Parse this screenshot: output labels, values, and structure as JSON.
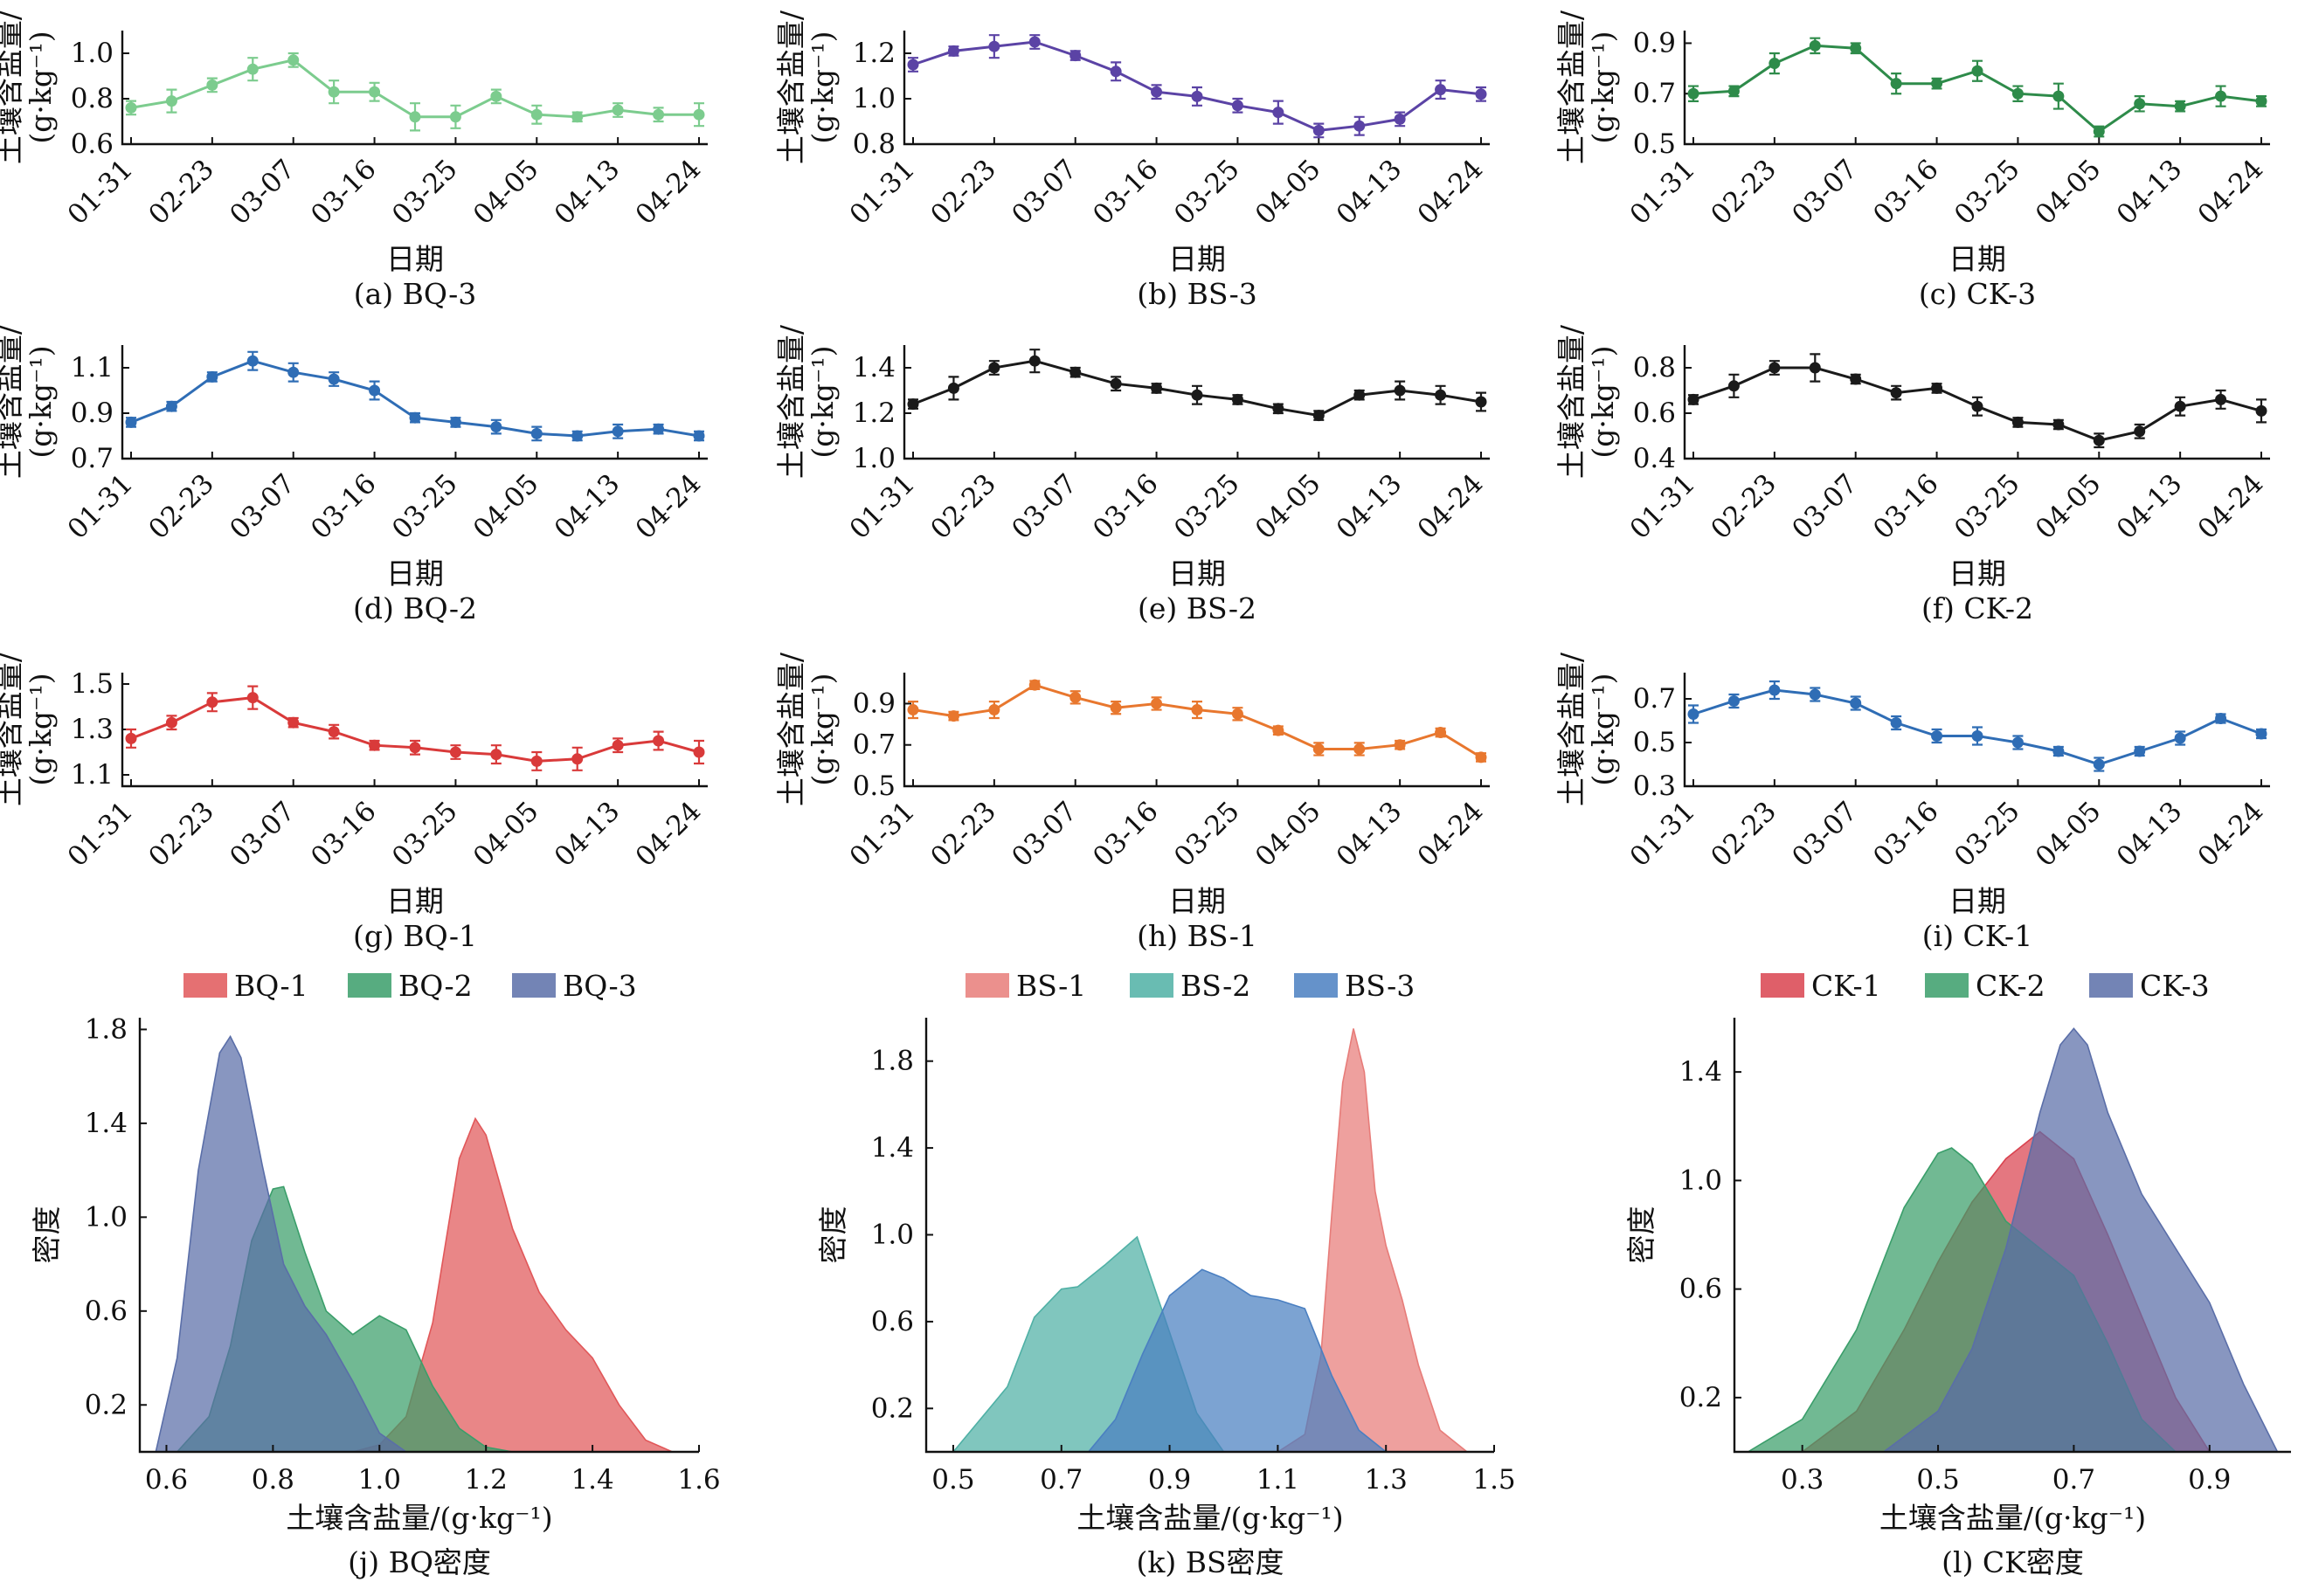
{
  "xlabel": "日期",
  "ylabel_line1": "土壤含盐量/",
  "ylabel_line2": "(g·kg⁻¹)",
  "density_xlabel": "土壤含盐量/(g·kg⁻¹)",
  "density_ylabel": "密度",
  "x_tick_labels": [
    "01-31",
    "02-23",
    "03-07",
    "03-16",
    "03-25",
    "04-05",
    "04-13",
    "04-24"
  ],
  "chart_data": [
    {
      "id": "a",
      "type": "line",
      "caption": "(a) BQ-3",
      "color": "#7ccc8e",
      "ylim": [
        0.6,
        1.1
      ],
      "yticks": [
        0.6,
        0.8,
        1.0
      ],
      "x": [
        "01-31",
        "",
        "02-23",
        "",
        "03-07",
        "",
        "03-16",
        "",
        "03-25",
        "",
        "04-05",
        "",
        "04-13",
        "",
        "04-24"
      ],
      "values": [
        0.76,
        0.79,
        0.86,
        0.93,
        0.97,
        0.83,
        0.83,
        0.72,
        0.72,
        0.81,
        0.73,
        0.72,
        0.75,
        0.73,
        0.73
      ],
      "errors": [
        0.03,
        0.05,
        0.03,
        0.05,
        0.03,
        0.05,
        0.04,
        0.06,
        0.05,
        0.03,
        0.04,
        0.02,
        0.03,
        0.03,
        0.05
      ]
    },
    {
      "id": "b",
      "type": "line",
      "caption": "(b) BS-3",
      "color": "#5b43a5",
      "ylim": [
        0.8,
        1.3
      ],
      "yticks": [
        0.8,
        1.0,
        1.2
      ],
      "x": [
        "01-31",
        "",
        "02-23",
        "",
        "03-07",
        "",
        "03-16",
        "",
        "03-25",
        "",
        "04-05",
        "",
        "04-13",
        "",
        "04-24"
      ],
      "values": [
        1.15,
        1.21,
        1.23,
        1.25,
        1.19,
        1.12,
        1.03,
        1.01,
        0.97,
        0.94,
        0.86,
        0.88,
        0.91,
        1.04,
        1.02
      ],
      "errors": [
        0.03,
        0.02,
        0.05,
        0.03,
        0.02,
        0.04,
        0.03,
        0.04,
        0.03,
        0.05,
        0.03,
        0.04,
        0.03,
        0.04,
        0.03
      ]
    },
    {
      "id": "c",
      "type": "line",
      "caption": "(c) CK-3",
      "color": "#2e8b4a",
      "ylim": [
        0.5,
        0.95
      ],
      "yticks": [
        0.5,
        0.7,
        0.9
      ],
      "x": [
        "01-31",
        "",
        "02-23",
        "",
        "03-07",
        "",
        "03-16",
        "",
        "03-25",
        "",
        "04-05",
        "",
        "04-13",
        "",
        "04-24"
      ],
      "values": [
        0.7,
        0.71,
        0.82,
        0.89,
        0.88,
        0.74,
        0.74,
        0.79,
        0.7,
        0.69,
        0.55,
        0.66,
        0.65,
        0.69,
        0.67
      ],
      "errors": [
        0.03,
        0.02,
        0.04,
        0.03,
        0.02,
        0.04,
        0.02,
        0.04,
        0.03,
        0.05,
        0.02,
        0.03,
        0.02,
        0.04,
        0.02
      ]
    },
    {
      "id": "d",
      "type": "line",
      "caption": "(d) BQ-2",
      "color": "#2f6db5",
      "ylim": [
        0.7,
        1.2
      ],
      "yticks": [
        0.7,
        0.9,
        1.1
      ],
      "x": [
        "01-31",
        "",
        "02-23",
        "",
        "03-07",
        "",
        "03-16",
        "",
        "03-25",
        "",
        "04-05",
        "",
        "04-13",
        "",
        "04-24"
      ],
      "values": [
        0.86,
        0.93,
        1.06,
        1.13,
        1.08,
        1.05,
        1.0,
        0.88,
        0.86,
        0.84,
        0.81,
        0.8,
        0.82,
        0.83,
        0.8
      ],
      "errors": [
        0.02,
        0.02,
        0.02,
        0.04,
        0.04,
        0.03,
        0.04,
        0.02,
        0.02,
        0.03,
        0.03,
        0.02,
        0.03,
        0.02,
        0.02
      ]
    },
    {
      "id": "e",
      "type": "line",
      "caption": "(e) BS-2",
      "color": "#1a1a1a",
      "ylim": [
        1.0,
        1.5
      ],
      "yticks": [
        1.0,
        1.2,
        1.4
      ],
      "x": [
        "01-31",
        "",
        "02-23",
        "",
        "03-07",
        "",
        "03-16",
        "",
        "03-25",
        "",
        "04-05",
        "",
        "04-13",
        "",
        "04-24"
      ],
      "values": [
        1.24,
        1.31,
        1.4,
        1.43,
        1.38,
        1.33,
        1.31,
        1.28,
        1.26,
        1.22,
        1.19,
        1.28,
        1.3,
        1.28,
        1.25
      ],
      "errors": [
        0.02,
        0.05,
        0.03,
        0.05,
        0.02,
        0.03,
        0.02,
        0.04,
        0.02,
        0.02,
        0.02,
        0.02,
        0.04,
        0.04,
        0.04
      ]
    },
    {
      "id": "f",
      "type": "line",
      "caption": "(f) CK-2",
      "color": "#1a1a1a",
      "ylim": [
        0.4,
        0.9
      ],
      "yticks": [
        0.4,
        0.6,
        0.8
      ],
      "x": [
        "01-31",
        "",
        "02-23",
        "",
        "03-07",
        "",
        "03-16",
        "",
        "03-25",
        "",
        "04-05",
        "",
        "04-13",
        "",
        "04-24"
      ],
      "values": [
        0.66,
        0.72,
        0.8,
        0.8,
        0.75,
        0.69,
        0.71,
        0.63,
        0.56,
        0.55,
        0.48,
        0.52,
        0.63,
        0.66,
        0.61
      ],
      "errors": [
        0.02,
        0.05,
        0.03,
        0.06,
        0.02,
        0.03,
        0.02,
        0.04,
        0.02,
        0.02,
        0.03,
        0.03,
        0.04,
        0.04,
        0.05
      ]
    },
    {
      "id": "g",
      "type": "line",
      "caption": "(g) BQ-1",
      "color": "#d93a3a",
      "ylim": [
        1.05,
        1.55
      ],
      "yticks": [
        1.1,
        1.3,
        1.5
      ],
      "x": [
        "01-31",
        "",
        "02-23",
        "",
        "03-07",
        "",
        "03-16",
        "",
        "03-25",
        "",
        "04-05",
        "",
        "04-13",
        "",
        "04-24"
      ],
      "values": [
        1.26,
        1.33,
        1.42,
        1.44,
        1.33,
        1.29,
        1.23,
        1.22,
        1.2,
        1.19,
        1.16,
        1.17,
        1.23,
        1.25,
        1.2
      ],
      "errors": [
        0.04,
        0.03,
        0.04,
        0.05,
        0.02,
        0.03,
        0.02,
        0.03,
        0.03,
        0.04,
        0.04,
        0.05,
        0.03,
        0.04,
        0.05
      ]
    },
    {
      "id": "h",
      "type": "line",
      "caption": "(h) BS-1",
      "color": "#e8772e",
      "ylim": [
        0.5,
        1.05
      ],
      "yticks": [
        0.5,
        0.7,
        0.9
      ],
      "x": [
        "01-31",
        "",
        "02-23",
        "",
        "03-07",
        "",
        "03-16",
        "",
        "03-25",
        "",
        "04-05",
        "",
        "04-13",
        "",
        "04-24"
      ],
      "values": [
        0.87,
        0.84,
        0.87,
        0.99,
        0.93,
        0.88,
        0.9,
        0.87,
        0.85,
        0.77,
        0.68,
        0.68,
        0.7,
        0.76,
        0.64
      ],
      "errors": [
        0.04,
        0.02,
        0.04,
        0.02,
        0.03,
        0.03,
        0.03,
        0.04,
        0.03,
        0.02,
        0.03,
        0.03,
        0.02,
        0.02,
        0.02
      ]
    },
    {
      "id": "i",
      "type": "line",
      "caption": "(i) CK-1",
      "color": "#2f6db5",
      "ylim": [
        0.3,
        0.82
      ],
      "yticks": [
        0.3,
        0.5,
        0.7
      ],
      "x": [
        "01-31",
        "",
        "02-23",
        "",
        "03-07",
        "",
        "03-16",
        "",
        "03-25",
        "",
        "04-05",
        "",
        "04-13",
        "",
        "04-24"
      ],
      "values": [
        0.63,
        0.69,
        0.74,
        0.72,
        0.68,
        0.59,
        0.53,
        0.53,
        0.5,
        0.46,
        0.4,
        0.46,
        0.52,
        0.61,
        0.54
      ],
      "errors": [
        0.04,
        0.03,
        0.04,
        0.03,
        0.03,
        0.03,
        0.03,
        0.04,
        0.03,
        0.02,
        0.03,
        0.02,
        0.03,
        0.02,
        0.02
      ]
    },
    {
      "id": "j",
      "type": "area",
      "caption": "(j) BQ密度",
      "xlim": [
        0.55,
        1.6
      ],
      "ylim": [
        0,
        1.85
      ],
      "xticks": [
        0.6,
        0.8,
        1.0,
        1.2,
        1.4,
        1.6
      ],
      "yticks": [
        0.2,
        0.6,
        1.0,
        1.4,
        1.8
      ],
      "series": [
        {
          "name": "BQ-1",
          "color": "#e15759",
          "x": [
            0.95,
            1.0,
            1.05,
            1.1,
            1.15,
            1.18,
            1.2,
            1.25,
            1.3,
            1.35,
            1.4,
            1.45,
            1.5,
            1.55
          ],
          "y": [
            0.0,
            0.03,
            0.15,
            0.55,
            1.25,
            1.42,
            1.35,
            0.95,
            0.68,
            0.52,
            0.4,
            0.2,
            0.05,
            0.0
          ]
        },
        {
          "name": "BQ-2",
          "color": "#3a9e6a",
          "x": [
            0.62,
            0.68,
            0.72,
            0.76,
            0.8,
            0.82,
            0.86,
            0.9,
            0.95,
            1.0,
            1.05,
            1.1,
            1.15,
            1.2,
            1.25
          ],
          "y": [
            0.0,
            0.15,
            0.45,
            0.9,
            1.12,
            1.13,
            0.85,
            0.6,
            0.5,
            0.58,
            0.52,
            0.28,
            0.1,
            0.02,
            0.0
          ]
        },
        {
          "name": "BQ-3",
          "color": "#5a6ea8",
          "x": [
            0.58,
            0.62,
            0.66,
            0.7,
            0.72,
            0.74,
            0.78,
            0.82,
            0.86,
            0.9,
            0.95,
            1.0,
            1.05
          ],
          "y": [
            0.0,
            0.4,
            1.2,
            1.7,
            1.77,
            1.68,
            1.22,
            0.8,
            0.62,
            0.5,
            0.3,
            0.08,
            0.0
          ]
        }
      ]
    },
    {
      "id": "k",
      "type": "area",
      "caption": "(k) BS密度",
      "xlim": [
        0.45,
        1.5
      ],
      "ylim": [
        0,
        2.0
      ],
      "xticks": [
        0.5,
        0.7,
        0.9,
        1.1,
        1.3,
        1.5
      ],
      "yticks": [
        0.2,
        0.6,
        1.0,
        1.4,
        1.8
      ],
      "series": [
        {
          "name": "BS-1",
          "color": "#e77c79",
          "x": [
            1.1,
            1.15,
            1.18,
            1.2,
            1.22,
            1.24,
            1.26,
            1.28,
            1.3,
            1.33,
            1.36,
            1.4,
            1.45
          ],
          "y": [
            0.0,
            0.08,
            0.45,
            1.1,
            1.7,
            1.95,
            1.75,
            1.2,
            0.95,
            0.7,
            0.4,
            0.1,
            0.0
          ]
        },
        {
          "name": "BS-2",
          "color": "#4fb0a5",
          "x": [
            0.5,
            0.6,
            0.65,
            0.7,
            0.73,
            0.78,
            0.84,
            0.9,
            0.95,
            1.0
          ],
          "y": [
            0.0,
            0.3,
            0.62,
            0.75,
            0.76,
            0.86,
            0.99,
            0.55,
            0.18,
            0.0
          ]
        },
        {
          "name": "BS-3",
          "color": "#4a7fc1",
          "x": [
            0.75,
            0.8,
            0.85,
            0.9,
            0.96,
            1.0,
            1.05,
            1.1,
            1.15,
            1.2,
            1.25,
            1.3
          ],
          "y": [
            0.0,
            0.15,
            0.45,
            0.72,
            0.84,
            0.8,
            0.72,
            0.7,
            0.66,
            0.35,
            0.1,
            0.0
          ]
        }
      ]
    },
    {
      "id": "l",
      "type": "area",
      "caption": "(l) CK密度",
      "xlim": [
        0.2,
        1.02
      ],
      "ylim": [
        0,
        1.6
      ],
      "xticks": [
        0.3,
        0.5,
        0.7,
        0.9
      ],
      "yticks": [
        0.2,
        0.6,
        1.0,
        1.4
      ],
      "series": [
        {
          "name": "CK-1",
          "color": "#d9434f",
          "x": [
            0.3,
            0.38,
            0.45,
            0.5,
            0.55,
            0.6,
            0.65,
            0.7,
            0.75,
            0.8,
            0.85,
            0.9
          ],
          "y": [
            0.0,
            0.15,
            0.45,
            0.7,
            0.92,
            1.08,
            1.18,
            1.08,
            0.8,
            0.5,
            0.2,
            0.0
          ]
        },
        {
          "name": "CK-2",
          "color": "#3a9e6a",
          "x": [
            0.22,
            0.3,
            0.38,
            0.45,
            0.5,
            0.52,
            0.55,
            0.6,
            0.65,
            0.7,
            0.75,
            0.8,
            0.85
          ],
          "y": [
            0.0,
            0.12,
            0.45,
            0.9,
            1.1,
            1.12,
            1.06,
            0.85,
            0.75,
            0.65,
            0.4,
            0.12,
            0.0
          ]
        },
        {
          "name": "CK-3",
          "color": "#5a6ea8",
          "x": [
            0.42,
            0.5,
            0.55,
            0.6,
            0.65,
            0.68,
            0.7,
            0.72,
            0.75,
            0.8,
            0.85,
            0.9,
            0.95,
            1.0
          ],
          "y": [
            0.0,
            0.15,
            0.38,
            0.75,
            1.25,
            1.5,
            1.56,
            1.5,
            1.25,
            0.95,
            0.75,
            0.55,
            0.25,
            0.0
          ]
        }
      ]
    }
  ]
}
